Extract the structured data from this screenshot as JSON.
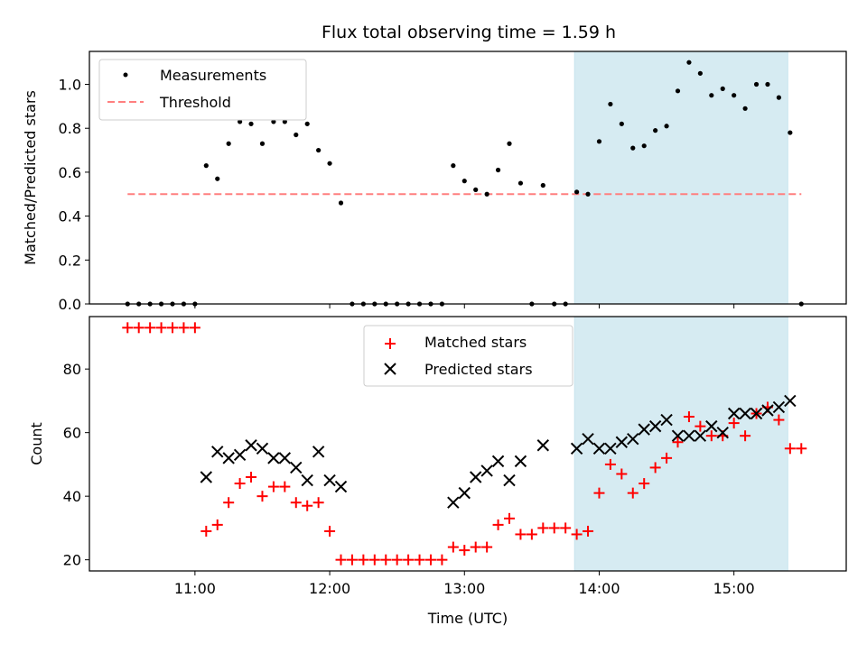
{
  "chart_data": [
    {
      "type": "scatter",
      "title": "Flux total observing time = 1.59 h",
      "ylabel": "Matched/Predicted stars",
      "xlabel": "",
      "ylim": [
        0,
        1.15
      ],
      "yticks": [
        "0.0",
        "0.2",
        "0.4",
        "0.6",
        "0.8",
        "1.0"
      ],
      "legend": {
        "position": "upper-left",
        "entries": [
          "Measurements",
          "Threshold"
        ]
      },
      "colors": {
        "measurements": "#000000",
        "threshold": "#ff7f7f",
        "span": "#add8e6"
      },
      "highlight_span": [
        "13:49",
        "15:24"
      ],
      "threshold": {
        "value": 0.5,
        "x_start": "10:30",
        "x_end": "15:30"
      },
      "series": [
        {
          "name": "Measurements",
          "x": [
            "10:30",
            "10:35",
            "10:40",
            "10:45",
            "10:50",
            "10:55",
            "11:00",
            "11:05",
            "11:10",
            "11:15",
            "11:20",
            "11:25",
            "11:30",
            "11:35",
            "11:40",
            "11:45",
            "11:50",
            "11:55",
            "12:00",
            "12:05",
            "12:10",
            "12:15",
            "12:20",
            "12:25",
            "12:30",
            "12:35",
            "12:40",
            "12:45",
            "12:50",
            "12:55",
            "13:00",
            "13:05",
            "13:10",
            "13:15",
            "13:20",
            "13:25",
            "13:30",
            "13:35",
            "13:40",
            "13:45",
            "13:50",
            "13:55",
            "14:00",
            "14:05",
            "14:10",
            "14:15",
            "14:20",
            "14:25",
            "14:30",
            "14:35",
            "14:40",
            "14:45",
            "14:50",
            "14:55",
            "15:00",
            "15:05",
            "15:10",
            "15:15",
            "15:20",
            "15:25",
            "15:30"
          ],
          "y": [
            0,
            0,
            0,
            0,
            0,
            0,
            0,
            0.63,
            0.57,
            0.73,
            0.83,
            0.82,
            0.73,
            0.83,
            0.83,
            0.77,
            0.82,
            0.7,
            0.64,
            0.46,
            0,
            0,
            0,
            0,
            0,
            0,
            0,
            0,
            0,
            0.63,
            0.56,
            0.52,
            0.5,
            0.61,
            0.73,
            0.55,
            0,
            0.54,
            0,
            0,
            0.51,
            0.5,
            0.74,
            0.91,
            0.82,
            0.71,
            0.72,
            0.79,
            0.81,
            0.97,
            1.1,
            1.05,
            0.95,
            0.98,
            0.95,
            0.89,
            1.0,
            1.0,
            0.94,
            0.78,
            0
          ]
        }
      ]
    },
    {
      "type": "scatter",
      "title": "",
      "ylabel": "Count",
      "xlabel": "Time (UTC)",
      "ylim": [
        16.5,
        96.5
      ],
      "yticks": [
        "20",
        "40",
        "60",
        "80"
      ],
      "xticks": [
        "11:00",
        "12:00",
        "13:00",
        "14:00",
        "15:00"
      ],
      "xlim": [
        "10:13",
        "15:50"
      ],
      "legend": {
        "position": "upper-center",
        "entries": [
          "Matched stars",
          "Predicted stars"
        ]
      },
      "colors": {
        "matched": "#ff0000",
        "predicted": "#000000",
        "span": "#add8e6"
      },
      "highlight_span": [
        "13:49",
        "15:24"
      ],
      "series": [
        {
          "name": "Matched stars",
          "x": [
            "10:30",
            "10:35",
            "10:40",
            "10:45",
            "10:50",
            "10:55",
            "11:00",
            "11:05",
            "11:10",
            "11:15",
            "11:20",
            "11:25",
            "11:30",
            "11:35",
            "11:40",
            "11:45",
            "11:50",
            "11:55",
            "12:00",
            "12:05",
            "12:10",
            "12:15",
            "12:20",
            "12:25",
            "12:30",
            "12:35",
            "12:40",
            "12:45",
            "12:50",
            "12:55",
            "13:00",
            "13:05",
            "13:10",
            "13:15",
            "13:20",
            "13:25",
            "13:30",
            "13:35",
            "13:40",
            "13:45",
            "13:50",
            "13:55",
            "14:00",
            "14:05",
            "14:10",
            "14:15",
            "14:20",
            "14:25",
            "14:30",
            "14:35",
            "14:40",
            "14:45",
            "14:50",
            "14:55",
            "15:00",
            "15:05",
            "15:10",
            "15:15",
            "15:20",
            "15:25",
            "15:30"
          ],
          "y": [
            93,
            93,
            93,
            93,
            93,
            93,
            93,
            29,
            31,
            38,
            44,
            46,
            40,
            43,
            43,
            38,
            37,
            38,
            29,
            20,
            20,
            20,
            20,
            20,
            20,
            20,
            20,
            20,
            20,
            24,
            23,
            24,
            24,
            31,
            33,
            28,
            28,
            30,
            30,
            30,
            28,
            29,
            41,
            50,
            47,
            41,
            44,
            49,
            52,
            57,
            65,
            62,
            59,
            59,
            63,
            59,
            66,
            68,
            64,
            55,
            55
          ]
        },
        {
          "name": "Predicted stars",
          "x": [
            "11:05",
            "11:10",
            "11:15",
            "11:20",
            "11:25",
            "11:30",
            "11:35",
            "11:40",
            "11:45",
            "11:50",
            "11:55",
            "12:00",
            "12:05",
            "12:55",
            "13:00",
            "13:05",
            "13:10",
            "13:15",
            "13:20",
            "13:25",
            "13:35",
            "13:50",
            "13:55",
            "14:00",
            "14:05",
            "14:10",
            "14:15",
            "14:20",
            "14:25",
            "14:30",
            "14:35",
            "14:40",
            "14:45",
            "14:50",
            "14:55",
            "15:00",
            "15:05",
            "15:10",
            "15:15",
            "15:20",
            "15:25"
          ],
          "y": [
            46,
            54,
            52,
            53,
            56,
            55,
            52,
            52,
            49,
            45,
            54,
            45,
            43,
            38,
            41,
            46,
            48,
            51,
            45,
            51,
            56,
            55,
            58,
            55,
            55,
            57,
            58,
            61,
            62,
            64,
            59,
            59,
            59,
            62,
            60,
            66,
            66,
            66,
            67,
            68,
            70
          ]
        }
      ]
    }
  ]
}
